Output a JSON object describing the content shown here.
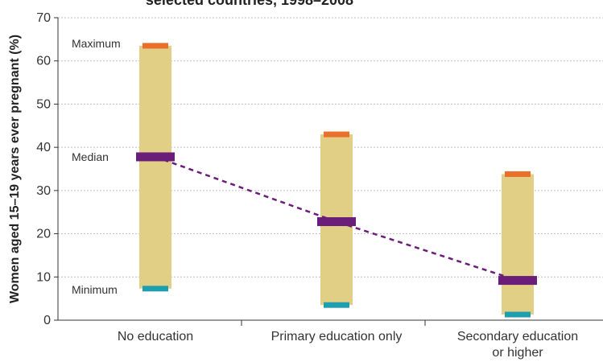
{
  "chart_data": {
    "type": "range",
    "title": "selected countries, 1998–2008",
    "ylabel": "Women aged 15–19 years ever pregnant (%)",
    "xlabel": "",
    "ylim": [
      0,
      70
    ],
    "yticks": [
      0,
      10,
      20,
      30,
      40,
      50,
      60,
      70
    ],
    "grid": true,
    "categories": [
      {
        "lines": [
          "No education"
        ]
      },
      {
        "lines": [
          "Primary education only"
        ]
      },
      {
        "lines": [
          "Secondary education",
          "or higher"
        ]
      }
    ],
    "series": [
      {
        "name": "Maximum",
        "values": [
          63.5,
          43,
          33.8
        ]
      },
      {
        "name": "Median",
        "values": [
          37.8,
          22.8,
          9.2
        ]
      },
      {
        "name": "Minimum",
        "values": [
          7.3,
          3.5,
          1.3
        ]
      }
    ],
    "annotations": [
      "Maximum",
      "Median",
      "Minimum"
    ],
    "colors": {
      "range": "#e2cf86",
      "maximum": "#e8702a",
      "median": "#6b1d7a",
      "minimum": "#1d9fb0",
      "grid": "#bfbfbf",
      "axis": "#333333"
    }
  }
}
